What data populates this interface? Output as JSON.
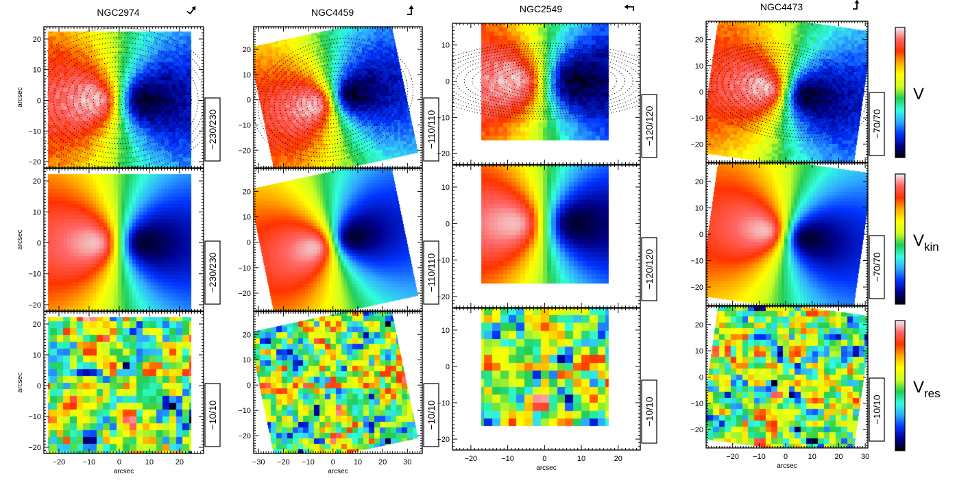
{
  "figure": {
    "y_axis_label": "arcsec",
    "x_axis_label": "arcsec",
    "row_quantities": [
      {
        "symbol": "V",
        "subscript": ""
      },
      {
        "symbol": "V",
        "subscript": "kin"
      },
      {
        "symbol": "V",
        "subscript": "res"
      }
    ],
    "galaxies": [
      {
        "name": "NGC2974",
        "ranges": [
          "−230/230",
          "−230/230",
          "−10/10"
        ],
        "x_ticks": [
          "−20",
          "−10",
          "0",
          "10",
          "20"
        ],
        "y_ticks": [
          "20",
          "10",
          "0",
          "−10",
          "−20"
        ],
        "x_range": [
          -25,
          28
        ],
        "y_range": [
          -22,
          24
        ],
        "compass_rotation_deg": 35,
        "pattern_angle_deg": 0,
        "show_y_axis_label": true
      },
      {
        "name": "NGC4459",
        "ranges": [
          "−110/110",
          "−110/110",
          "−10/10"
        ],
        "x_ticks": [
          "−30",
          "−20",
          "−10",
          "0",
          "10",
          "20",
          "30"
        ],
        "y_ticks": [
          "20",
          "10",
          "0",
          "−10",
          "−20"
        ],
        "x_range": [
          -32,
          36
        ],
        "y_range": [
          -27,
          29
        ],
        "compass_rotation_deg": 0,
        "pattern_angle_deg": 15,
        "show_y_axis_label": false
      },
      {
        "name": "NGC2549",
        "ranges": [
          "−120/120",
          "−120/120",
          "−10/10"
        ],
        "x_ticks": [
          "−20",
          "−10",
          "0",
          "10",
          "20"
        ],
        "y_ticks": [
          "10",
          "0",
          "−10",
          "−20"
        ],
        "x_range": [
          -25,
          26
        ],
        "y_range": [
          -23,
          16
        ],
        "compass_rotation_deg": -90,
        "pattern_angle_deg": 0,
        "show_y_axis_label": false
      },
      {
        "name": "NGC4473",
        "ranges": [
          "−70/70",
          "−70/70",
          "−10/10"
        ],
        "x_ticks": [
          "−20",
          "−10",
          "0",
          "10",
          "20",
          "30"
        ],
        "y_ticks": [
          "20",
          "10",
          "0",
          "−10",
          "−20"
        ],
        "x_range": [
          -30,
          31
        ],
        "y_range": [
          -27,
          27
        ],
        "compass_rotation_deg": 0,
        "pattern_angle_deg": -10,
        "show_y_axis_label": false
      }
    ],
    "colormap": [
      "#000000",
      "#00008b",
      "#0033ff",
      "#2fa8ff",
      "#33ffdd",
      "#22cc55",
      "#ccff22",
      "#ffff00",
      "#ffaa00",
      "#ff3300",
      "#ff6666",
      "#eeeeee"
    ]
  }
}
